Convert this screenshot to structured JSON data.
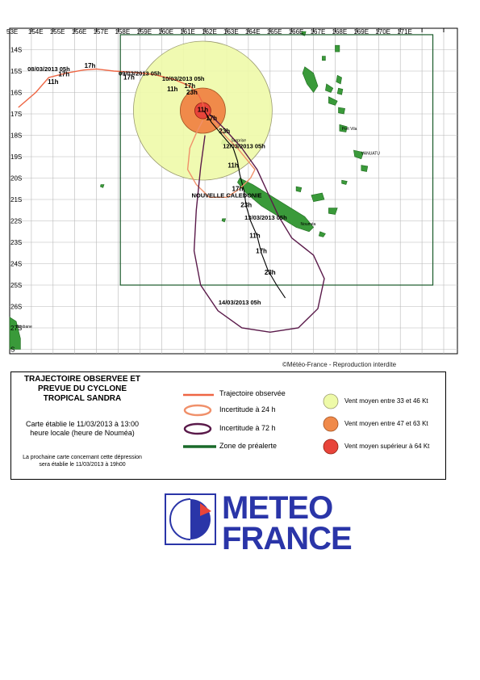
{
  "map": {
    "lon_labels": [
      "53E",
      "154E",
      "155E",
      "156E",
      "157E",
      "158E",
      "159E",
      "160E",
      "161E",
      "162E",
      "163E",
      "164E",
      "165E",
      "166E",
      "167E",
      "168E",
      "169E",
      "170E",
      "171E"
    ],
    "lat_labels": [
      "14S",
      "15S",
      "16S",
      "17S",
      "18S",
      "19S",
      "20S",
      "21S",
      "22S",
      "23S",
      "24S",
      "25S",
      "26S",
      "27S",
      "S"
    ],
    "track_labels": [
      {
        "text": "08/03/2013 05h",
        "lon": 154.8,
        "lat": 15.0
      },
      {
        "text": "17h",
        "lon": 156.7,
        "lat": 14.85
      },
      {
        "text": "11h",
        "lon": 155.0,
        "lat": 15.6
      },
      {
        "text": "17h",
        "lon": 155.5,
        "lat": 15.25
      },
      {
        "text": "09/03/2013 05h",
        "lon": 159.0,
        "lat": 15.2
      },
      {
        "text": "17h",
        "lon": 158.5,
        "lat": 15.4
      },
      {
        "text": "10/03/2013 05h",
        "lon": 161.0,
        "lat": 15.45
      },
      {
        "text": "17h",
        "lon": 161.3,
        "lat": 15.8
      },
      {
        "text": "11h",
        "lon": 160.5,
        "lat": 15.95
      },
      {
        "text": "23h",
        "lon": 161.4,
        "lat": 16.1
      },
      {
        "text": "11h",
        "lon": 161.9,
        "lat": 16.9
      },
      {
        "text": "17h",
        "lon": 162.3,
        "lat": 17.3
      },
      {
        "text": "23h",
        "lon": 162.9,
        "lat": 17.9
      },
      {
        "text": "12/03/2013 05h",
        "lon": 163.8,
        "lat": 18.6
      },
      {
        "text": "11h",
        "lon": 163.3,
        "lat": 19.5
      },
      {
        "text": "17h",
        "lon": 163.5,
        "lat": 20.6
      },
      {
        "text": "NOUVELLE CALEDONIE",
        "lon": 163.0,
        "lat": 20.9
      },
      {
        "text": "23h",
        "lon": 163.9,
        "lat": 21.35
      },
      {
        "text": "13/03/2013 05h",
        "lon": 164.8,
        "lat": 21.95
      },
      {
        "text": "11h",
        "lon": 164.3,
        "lat": 22.8
      },
      {
        "text": "17h",
        "lon": 164.6,
        "lat": 23.5
      },
      {
        "text": "23h",
        "lon": 165.0,
        "lat": 24.5
      },
      {
        "text": "14/03/2013 05h",
        "lon": 163.6,
        "lat": 25.9
      }
    ],
    "place_labels": [
      {
        "text": "Port Vila",
        "lon": 168.3,
        "lat": 17.75
      },
      {
        "text": "VANUATU",
        "lon": 169.2,
        "lat": 18.9
      },
      {
        "text": "Surprise",
        "lon": 163.2,
        "lat": 18.3
      },
      {
        "text": "Nouméa",
        "lon": 166.4,
        "lat": 22.2
      },
      {
        "text": "Brisbane",
        "lon": 153.3,
        "lat": 27.0
      }
    ]
  },
  "copyright": "©Météo-France - Reproduction interdite",
  "legend": {
    "title": "TRAJECTOIRE OBSERVEE ET PREVUE DU CYCLONE TROPICAL SANDRA",
    "info": "Carte établie le 11/03/2013 à 13:00 heure locale (heure de Nouméa)",
    "next": "La prochaine carte concernant cette dépression sera établie le 11/03/2013 à 19h00",
    "line_items": [
      {
        "label": "Trajectoire observée",
        "color": "#ee6644"
      },
      {
        "label": "Incertitude à 24 h",
        "color": "#f0906a"
      },
      {
        "label": "Incertitude à 72 h",
        "color": "#5a1a4a"
      },
      {
        "label": "Zone de préalerte",
        "color": "#1a6a2a"
      }
    ],
    "wind_items": [
      {
        "label": "Vent moyen entre 33 et 46 Kt",
        "color": "#eefaa8"
      },
      {
        "label": "Vent moyen entre 47 et 63 Kt",
        "color": "#f08a4a"
      },
      {
        "label": "Vent moyen supérieur à 64 Kt",
        "color": "#e8443a"
      }
    ]
  },
  "logo": {
    "line1": "METEO",
    "line2": "FRANCE",
    "color": "#2a35a8",
    "accent": "#e8443a"
  }
}
